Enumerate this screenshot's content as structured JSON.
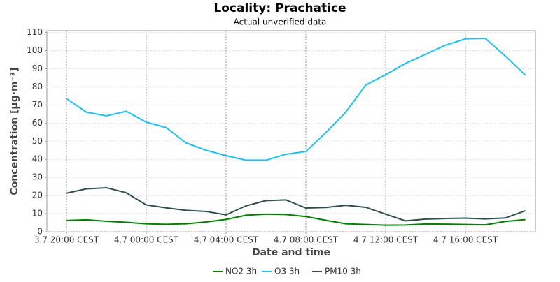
{
  "chart_data": {
    "type": "line",
    "title": "Locality: Prachatice",
    "subtitle": "Actual unverified data",
    "x_label": "Date and time",
    "y_label": "Concentration [µg·m⁻³]",
    "x": [
      "3.7 20:00 CEST",
      null,
      null,
      null,
      "4.7 00:00 CEST",
      null,
      null,
      null,
      "4.7 04:00 CEST",
      null,
      null,
      null,
      "4.7 08:00 CEST",
      null,
      null,
      null,
      "4.7 12:00 CEST",
      null,
      null,
      null,
      "4.7 16:00 CEST",
      null,
      null,
      null
    ],
    "ylim": [
      0,
      111
    ],
    "yticks": [
      0,
      10,
      20,
      30,
      40,
      50,
      60,
      70,
      80,
      90,
      100,
      110
    ],
    "grid": true,
    "legend": "bottom",
    "series": [
      {
        "name": "NO2 3h",
        "color": "#008000",
        "values": [
          6.2,
          6.6,
          5.8,
          5.2,
          4.4,
          4.1,
          4.4,
          5.4,
          6.8,
          9.1,
          9.7,
          9.5,
          8.4,
          6.3,
          4.4,
          4.0,
          3.6,
          3.7,
          4.3,
          4.2,
          4.0,
          3.8,
          5.7,
          6.7
        ]
      },
      {
        "name": "O3 3h",
        "color": "#1ec0f2",
        "values": [
          73.5,
          66,
          64,
          66.5,
          60.5,
          57.5,
          49,
          45,
          42,
          39.5,
          39.5,
          42.8,
          44.3,
          54.7,
          66,
          81,
          86.7,
          93,
          98,
          103,
          106.5,
          106.7,
          97,
          86.5
        ]
      },
      {
        "name": "PM10 3h",
        "color": "#2f4f4f",
        "values": [
          21.3,
          23.7,
          24.3,
          21.5,
          14.8,
          13.2,
          11.8,
          11.2,
          9.3,
          14.3,
          17.2,
          17.6,
          13.1,
          13.4,
          14.6,
          13.5,
          9.7,
          6.0,
          7.0,
          7.3,
          7.5,
          7.1,
          7.6,
          11.6
        ]
      }
    ]
  }
}
